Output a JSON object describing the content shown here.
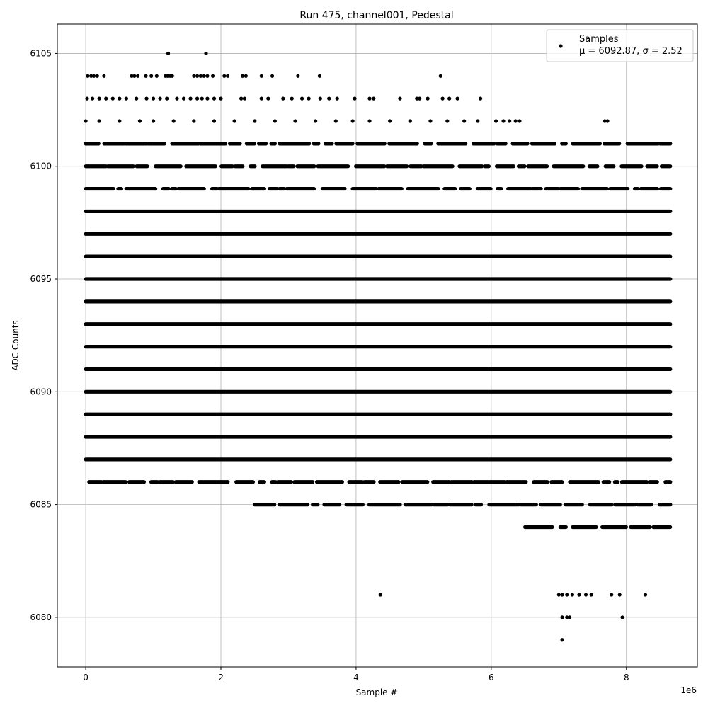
{
  "chart_data": {
    "type": "scatter",
    "title": "Run 475, channel001, Pedestal",
    "xlabel": "Sample #",
    "ylabel": "ADC Counts",
    "x_offset_label": "1e6",
    "xlim": [
      -0.42,
      9.05
    ],
    "ylim": [
      6077.8,
      6106.3
    ],
    "x_ticks": [
      0,
      2,
      4,
      6,
      8
    ],
    "x_tick_labels": [
      "0",
      "2",
      "4",
      "6",
      "8"
    ],
    "y_ticks": [
      6080,
      6085,
      6090,
      6095,
      6100,
      6105
    ],
    "y_tick_labels": [
      "6080",
      "6085",
      "6090",
      "6095",
      "6100",
      "6105"
    ],
    "grid": true,
    "legend": {
      "position": "top-right",
      "series_label": "Samples",
      "stats_label": "μ = 6092.87, σ = 2.52"
    },
    "series": [
      {
        "name": "Samples",
        "color": "#000000",
        "x_range": [
          0,
          8.65
        ],
        "mean": 6092.87,
        "sigma": 2.52,
        "dense_levels": [
          6087,
          6088,
          6089,
          6090,
          6091,
          6092,
          6093,
          6094,
          6095,
          6096,
          6097,
          6098
        ],
        "partial_levels": [
          {
            "y": 6099,
            "x_start": 0.0,
            "x_end": 8.65
          },
          {
            "y": 6100,
            "x_start": 0.0,
            "x_end": 8.65
          },
          {
            "y": 6101,
            "x_start": 0.0,
            "x_end": 8.65
          },
          {
            "y": 6086,
            "x_start": 0.05,
            "x_end": 8.65
          },
          {
            "y": 6085,
            "x_start": 2.5,
            "x_end": 8.65
          },
          {
            "y": 6084,
            "x_start": 6.5,
            "x_end": 8.65
          }
        ],
        "sparse_points": [
          [
            1.22,
            6105
          ],
          [
            1.78,
            6105
          ],
          [
            0.03,
            6104
          ],
          [
            0.08,
            6104
          ],
          [
            0.12,
            6104
          ],
          [
            0.17,
            6104
          ],
          [
            0.27,
            6104
          ],
          [
            0.68,
            6104
          ],
          [
            0.72,
            6104
          ],
          [
            0.77,
            6104
          ],
          [
            0.89,
            6104
          ],
          [
            0.97,
            6104
          ],
          [
            1.05,
            6104
          ],
          [
            1.18,
            6104
          ],
          [
            1.21,
            6104
          ],
          [
            1.25,
            6104
          ],
          [
            1.28,
            6104
          ],
          [
            1.6,
            6104
          ],
          [
            1.65,
            6104
          ],
          [
            1.7,
            6104
          ],
          [
            1.75,
            6104
          ],
          [
            1.8,
            6104
          ],
          [
            1.88,
            6104
          ],
          [
            2.05,
            6104
          ],
          [
            2.1,
            6104
          ],
          [
            2.32,
            6104
          ],
          [
            2.37,
            6104
          ],
          [
            2.6,
            6104
          ],
          [
            2.76,
            6104
          ],
          [
            3.14,
            6104
          ],
          [
            3.46,
            6104
          ],
          [
            5.25,
            6104
          ],
          [
            0.02,
            6103
          ],
          [
            0.1,
            6103
          ],
          [
            0.2,
            6103
          ],
          [
            0.3,
            6103
          ],
          [
            0.4,
            6103
          ],
          [
            0.5,
            6103
          ],
          [
            0.6,
            6103
          ],
          [
            0.75,
            6103
          ],
          [
            0.9,
            6103
          ],
          [
            1.0,
            6103
          ],
          [
            1.1,
            6103
          ],
          [
            1.2,
            6103
          ],
          [
            1.35,
            6103
          ],
          [
            1.45,
            6103
          ],
          [
            1.55,
            6103
          ],
          [
            1.65,
            6103
          ],
          [
            1.72,
            6103
          ],
          [
            1.8,
            6103
          ],
          [
            1.9,
            6103
          ],
          [
            2.0,
            6103
          ],
          [
            2.3,
            6103
          ],
          [
            2.35,
            6103
          ],
          [
            2.6,
            6103
          ],
          [
            2.7,
            6103
          ],
          [
            2.92,
            6103
          ],
          [
            3.05,
            6103
          ],
          [
            3.2,
            6103
          ],
          [
            3.3,
            6103
          ],
          [
            3.47,
            6103
          ],
          [
            3.6,
            6103
          ],
          [
            3.72,
            6103
          ],
          [
            3.98,
            6103
          ],
          [
            4.2,
            6103
          ],
          [
            4.26,
            6103
          ],
          [
            4.65,
            6103
          ],
          [
            4.9,
            6103
          ],
          [
            4.94,
            6103
          ],
          [
            5.06,
            6103
          ],
          [
            5.28,
            6103
          ],
          [
            5.38,
            6103
          ],
          [
            5.5,
            6103
          ],
          [
            5.84,
            6103
          ],
          [
            0.0,
            6102
          ],
          [
            0.2,
            6102
          ],
          [
            0.5,
            6102
          ],
          [
            0.8,
            6102
          ],
          [
            1.0,
            6102
          ],
          [
            1.3,
            6102
          ],
          [
            1.6,
            6102
          ],
          [
            1.9,
            6102
          ],
          [
            2.2,
            6102
          ],
          [
            2.5,
            6102
          ],
          [
            2.8,
            6102
          ],
          [
            3.1,
            6102
          ],
          [
            3.4,
            6102
          ],
          [
            3.7,
            6102
          ],
          [
            3.95,
            6102
          ],
          [
            4.2,
            6102
          ],
          [
            4.5,
            6102
          ],
          [
            4.8,
            6102
          ],
          [
            5.1,
            6102
          ],
          [
            5.35,
            6102
          ],
          [
            5.6,
            6102
          ],
          [
            5.8,
            6102
          ],
          [
            6.07,
            6102
          ],
          [
            6.18,
            6102
          ],
          [
            6.27,
            6102
          ],
          [
            6.36,
            6102
          ],
          [
            6.42,
            6102
          ],
          [
            7.68,
            6102
          ],
          [
            7.72,
            6102
          ],
          [
            4.36,
            6081
          ],
          [
            7.0,
            6081
          ],
          [
            7.05,
            6081
          ],
          [
            7.12,
            6081
          ],
          [
            7.2,
            6081
          ],
          [
            7.3,
            6081
          ],
          [
            7.4,
            6081
          ],
          [
            7.48,
            6081
          ],
          [
            7.78,
            6081
          ],
          [
            7.9,
            6081
          ],
          [
            8.28,
            6081
          ],
          [
            7.05,
            6080
          ],
          [
            7.12,
            6080
          ],
          [
            7.16,
            6080
          ],
          [
            7.94,
            6080
          ],
          [
            7.05,
            6079
          ]
        ]
      }
    ]
  }
}
